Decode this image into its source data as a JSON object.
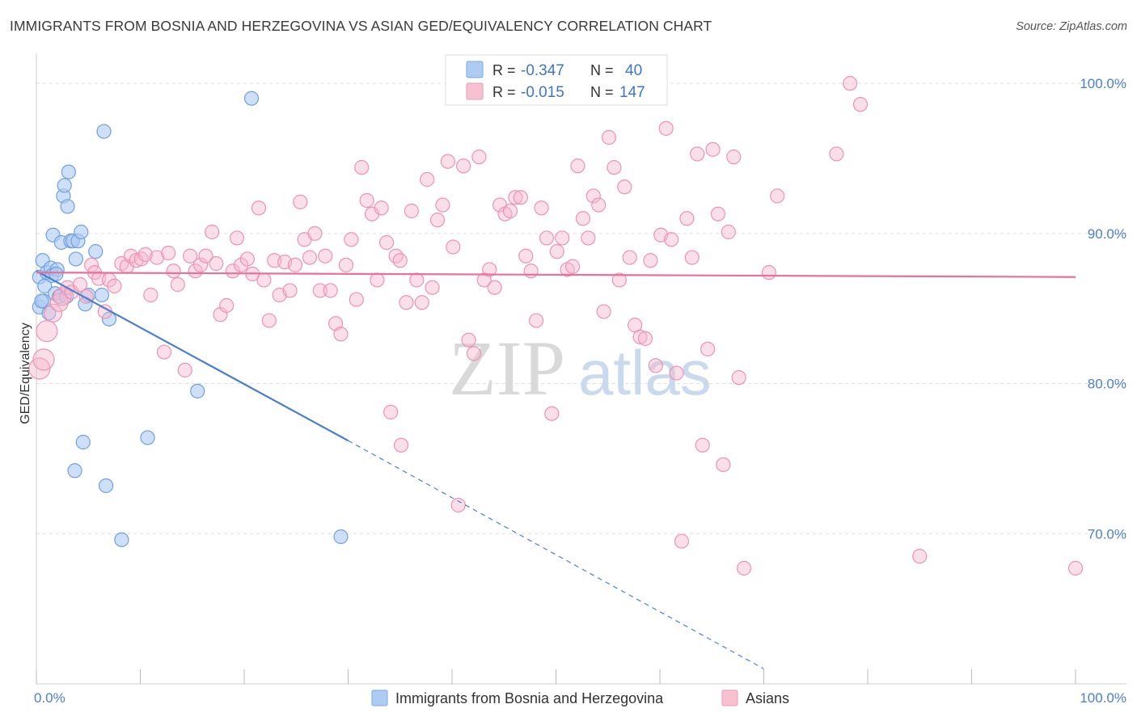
{
  "title": "IMMIGRANTS FROM BOSNIA AND HERZEGOVINA VS ASIAN GED/EQUIVALENCY CORRELATION CHART",
  "source": "Source: ZipAtlas.com",
  "watermark": {
    "zip": "ZIP",
    "atlas": "atlas"
  },
  "colors": {
    "blue": "#4a7fd0",
    "blue_fill": "#aecbf3",
    "pink": "#e8709a",
    "pink_fill": "#f7b8cc",
    "grid": "#dddddd"
  },
  "legend": {
    "rows": [
      {
        "r_label": "R =",
        "r_value": "-0.347",
        "n_label": "N =",
        "n_value": "40"
      },
      {
        "r_label": "R =",
        "r_value": "-0.015",
        "n_label": "N =",
        "n_value": "147"
      }
    ]
  },
  "chart_data": {
    "type": "scatter",
    "title": "IMMIGRANTS FROM BOSNIA AND HERZEGOVINA VS ASIAN GED/EQUIVALENCY CORRELATION CHART",
    "xlabel": "",
    "ylabel": "GED/Equivalency",
    "xlim": [
      0,
      100
    ],
    "ylim": [
      60,
      102
    ],
    "x_tick_labels": [
      "0.0%",
      "100.0%"
    ],
    "y_ticks": [
      70,
      80,
      90,
      100
    ],
    "y_tick_labels": [
      "70.0%",
      "80.0%",
      "90.0%",
      "100.0%"
    ],
    "grid": true,
    "legend_position": "bottom",
    "series": [
      {
        "name": "Immigrants from Bosnia and Herzegovina",
        "color": "blue",
        "r": -0.347,
        "n": 40,
        "trend": {
          "x0": 0,
          "y0": 87.5,
          "x1": 30,
          "y1": 76.2,
          "dashed_to_x": 70,
          "dashed_to_y": 61
        },
        "points": [
          [
            0.3,
            87.1
          ],
          [
            0.3,
            85.1
          ],
          [
            0.6,
            88.2
          ],
          [
            0.7,
            85.5
          ],
          [
            0.8,
            86.5
          ],
          [
            1.0,
            87.4
          ],
          [
            1.2,
            84.7
          ],
          [
            1.4,
            87.7
          ],
          [
            1.5,
            87.2
          ],
          [
            1.6,
            89.9
          ],
          [
            1.8,
            86.0
          ],
          [
            2.0,
            87.6
          ],
          [
            2.2,
            85.8
          ],
          [
            2.4,
            89.4
          ],
          [
            2.6,
            92.5
          ],
          [
            2.7,
            93.2
          ],
          [
            3.0,
            91.8
          ],
          [
            3.1,
            94.1
          ],
          [
            3.3,
            89.5
          ],
          [
            3.5,
            89.5
          ],
          [
            3.7,
            74.2
          ],
          [
            3.8,
            88.3
          ],
          [
            4.0,
            89.5
          ],
          [
            4.3,
            90.1
          ],
          [
            4.5,
            76.1
          ],
          [
            4.7,
            85.3
          ],
          [
            5.0,
            85.9
          ],
          [
            5.7,
            88.8
          ],
          [
            6.3,
            85.9
          ],
          [
            6.5,
            96.8
          ],
          [
            6.7,
            73.2
          ],
          [
            7.0,
            84.3
          ],
          [
            8.2,
            69.6
          ],
          [
            10.7,
            76.4
          ],
          [
            15.5,
            79.5
          ],
          [
            20.7,
            99.0
          ],
          [
            29.3,
            69.8
          ],
          [
            0.5,
            85.5
          ],
          [
            1.9,
            87.3
          ],
          [
            2.9,
            85.8
          ]
        ]
      },
      {
        "name": "Asians",
        "color": "pink",
        "r": -0.015,
        "n": 147,
        "trend": {
          "x0": 0,
          "y0": 87.4,
          "x1": 100,
          "y1": 87.1
        },
        "points": [
          [
            0.3,
            81.0
          ],
          [
            0.7,
            81.6
          ],
          [
            1.0,
            83.5
          ],
          [
            1.6,
            84.7
          ],
          [
            2.2,
            85.4
          ],
          [
            2.5,
            85.8
          ],
          [
            3.0,
            86.4
          ],
          [
            3.4,
            86.1
          ],
          [
            4.2,
            86.6
          ],
          [
            4.8,
            85.8
          ],
          [
            5.3,
            87.9
          ],
          [
            5.6,
            87.4
          ],
          [
            6.0,
            87.0
          ],
          [
            6.6,
            84.8
          ],
          [
            7.0,
            86.9
          ],
          [
            7.5,
            86.5
          ],
          [
            8.2,
            88.0
          ],
          [
            8.7,
            87.8
          ],
          [
            9.1,
            88.5
          ],
          [
            9.6,
            88.2
          ],
          [
            10.1,
            88.3
          ],
          [
            10.5,
            88.6
          ],
          [
            11.0,
            85.9
          ],
          [
            11.6,
            88.4
          ],
          [
            12.3,
            82.1
          ],
          [
            12.7,
            88.7
          ],
          [
            13.2,
            87.5
          ],
          [
            13.6,
            86.6
          ],
          [
            14.3,
            80.9
          ],
          [
            14.8,
            88.5
          ],
          [
            15.3,
            87.5
          ],
          [
            15.8,
            87.9
          ],
          [
            16.3,
            88.5
          ],
          [
            16.9,
            90.1
          ],
          [
            17.3,
            88.0
          ],
          [
            17.7,
            84.6
          ],
          [
            18.3,
            85.2
          ],
          [
            18.9,
            87.5
          ],
          [
            19.3,
            89.7
          ],
          [
            19.7,
            87.9
          ],
          [
            20.3,
            88.3
          ],
          [
            20.8,
            87.3
          ],
          [
            21.4,
            91.7
          ],
          [
            21.9,
            86.9
          ],
          [
            22.4,
            84.2
          ],
          [
            22.9,
            88.2
          ],
          [
            23.4,
            85.9
          ],
          [
            23.9,
            88.1
          ],
          [
            24.4,
            86.2
          ],
          [
            24.9,
            87.9
          ],
          [
            25.4,
            92.1
          ],
          [
            25.8,
            89.6
          ],
          [
            26.3,
            88.4
          ],
          [
            26.8,
            90.0
          ],
          [
            27.3,
            86.2
          ],
          [
            27.8,
            88.5
          ],
          [
            28.3,
            86.2
          ],
          [
            28.8,
            84.0
          ],
          [
            29.3,
            83.3
          ],
          [
            29.8,
            87.9
          ],
          [
            30.3,
            89.6
          ],
          [
            30.8,
            85.6
          ],
          [
            31.3,
            94.4
          ],
          [
            31.8,
            92.2
          ],
          [
            32.3,
            91.3
          ],
          [
            32.8,
            86.9
          ],
          [
            33.2,
            91.7
          ],
          [
            33.7,
            89.4
          ],
          [
            34.1,
            78.1
          ],
          [
            34.6,
            88.5
          ],
          [
            35.1,
            75.9
          ],
          [
            35.6,
            85.4
          ],
          [
            36.1,
            91.5
          ],
          [
            36.6,
            86.9
          ],
          [
            37.1,
            85.4
          ],
          [
            37.6,
            93.6
          ],
          [
            38.1,
            86.4
          ],
          [
            38.6,
            90.9
          ],
          [
            39.1,
            91.9
          ],
          [
            39.6,
            94.8
          ],
          [
            40.1,
            89.1
          ],
          [
            40.6,
            71.9
          ],
          [
            41.1,
            94.5
          ],
          [
            41.6,
            82.9
          ],
          [
            42.1,
            82.0
          ],
          [
            42.6,
            95.1
          ],
          [
            43.1,
            86.9
          ],
          [
            43.6,
            87.6
          ],
          [
            44.1,
            86.4
          ],
          [
            44.6,
            91.9
          ],
          [
            45.1,
            91.3
          ],
          [
            45.6,
            91.5
          ],
          [
            46.1,
            92.4
          ],
          [
            46.6,
            92.4
          ],
          [
            47.1,
            88.5
          ],
          [
            47.6,
            87.5
          ],
          [
            48.1,
            84.2
          ],
          [
            48.6,
            91.7
          ],
          [
            49.1,
            89.7
          ],
          [
            49.6,
            78.0
          ],
          [
            50.1,
            88.8
          ],
          [
            50.6,
            89.7
          ],
          [
            51.1,
            87.6
          ],
          [
            51.6,
            87.8
          ],
          [
            52.1,
            94.5
          ],
          [
            52.6,
            91.0
          ],
          [
            53.1,
            89.7
          ],
          [
            53.6,
            92.5
          ],
          [
            54.1,
            91.9
          ],
          [
            54.6,
            84.8
          ],
          [
            55.1,
            96.4
          ],
          [
            55.6,
            94.4
          ],
          [
            56.1,
            86.9
          ],
          [
            56.6,
            93.1
          ],
          [
            57.1,
            88.4
          ],
          [
            57.6,
            83.9
          ],
          [
            58.1,
            83.1
          ],
          [
            58.6,
            83.0
          ],
          [
            59.1,
            88.2
          ],
          [
            59.6,
            81.2
          ],
          [
            60.1,
            89.9
          ],
          [
            60.6,
            97.0
          ],
          [
            61.1,
            89.6
          ],
          [
            61.6,
            80.7
          ],
          [
            62.1,
            69.5
          ],
          [
            62.6,
            91.0
          ],
          [
            63.1,
            88.4
          ],
          [
            63.6,
            95.3
          ],
          [
            64.1,
            75.9
          ],
          [
            64.6,
            82.3
          ],
          [
            65.1,
            95.6
          ],
          [
            65.6,
            91.3
          ],
          [
            66.1,
            74.6
          ],
          [
            66.6,
            90.1
          ],
          [
            67.1,
            95.1
          ],
          [
            67.6,
            80.4
          ],
          [
            68.1,
            67.7
          ],
          [
            70.5,
            87.4
          ],
          [
            71.3,
            92.5
          ],
          [
            77.0,
            95.3
          ],
          [
            78.3,
            100.0
          ],
          [
            79.3,
            98.6
          ],
          [
            85.0,
            68.5
          ],
          [
            100.0,
            67.7
          ],
          [
            35.0,
            88.2
          ]
        ]
      }
    ]
  },
  "bottom_legend": [
    {
      "label": "Immigrants from Bosnia and Herzegovina",
      "color": "blue"
    },
    {
      "label": "Asians",
      "color": "pink"
    }
  ]
}
